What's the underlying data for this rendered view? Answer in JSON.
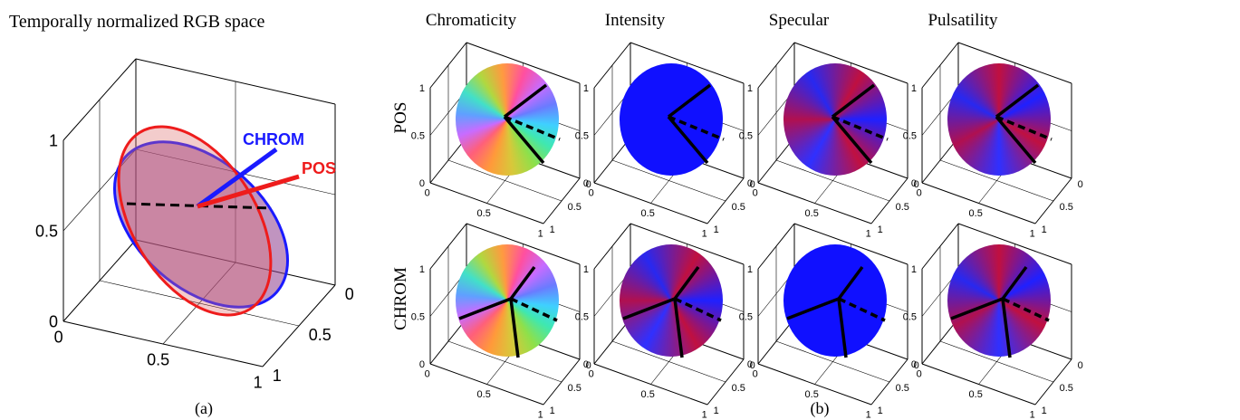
{
  "panel_a": {
    "title": "Temporally normalized RGB space",
    "labels": {
      "chrom": "CHROM",
      "pos": "POS"
    },
    "z_ticks": [
      "0",
      "0.5",
      "1"
    ],
    "x_ticks": [
      "0",
      "0.5",
      "1"
    ],
    "y_ticks": [
      "0",
      "0.5",
      "1"
    ],
    "caption": "(a)"
  },
  "panel_b": {
    "columns": [
      "Chromaticity",
      "Intensity",
      "Specular",
      "Pulsatility"
    ],
    "rows": [
      "POS",
      "CHROM"
    ],
    "z_ticks": [
      "0",
      "0.5",
      "1"
    ],
    "x_ticks": [
      "0",
      "0.5",
      "1"
    ],
    "y_ticks": [
      "0",
      "0.5",
      "1"
    ],
    "caption": "(b)"
  }
}
